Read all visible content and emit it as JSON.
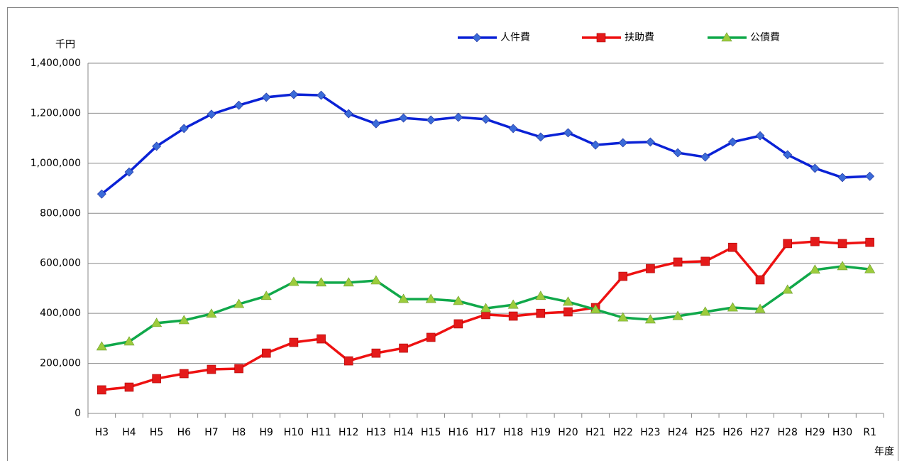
{
  "chart_data": {
    "type": "line",
    "y_unit_label": "千円",
    "x_label": "年度",
    "categories": [
      "H3",
      "H4",
      "H5",
      "H6",
      "H7",
      "H8",
      "H9",
      "H10",
      "H11",
      "H12",
      "H13",
      "H14",
      "H15",
      "H16",
      "H17",
      "H18",
      "H19",
      "H20",
      "H21",
      "H22",
      "H23",
      "H24",
      "H25",
      "H26",
      "H27",
      "H28",
      "H29",
      "H30",
      "R1"
    ],
    "series": [
      {
        "name": "人件費",
        "color": "#0a22d6",
        "marker": "diamond",
        "marker_color": "#3b6bd8",
        "values": [
          877000,
          965000,
          1068000,
          1139000,
          1196000,
          1232000,
          1264000,
          1275000,
          1272000,
          1198000,
          1158000,
          1181000,
          1173000,
          1184000,
          1176000,
          1139000,
          1105000,
          1122000,
          1073000,
          1082000,
          1085000,
          1042000,
          1025000,
          1085000,
          1110000,
          1034000,
          980000,
          943000,
          948000
        ]
      },
      {
        "name": "扶助費",
        "color": "#ee1111",
        "marker": "square",
        "marker_color": "#e41a1a",
        "values": [
          94000,
          105000,
          139000,
          159000,
          176000,
          179000,
          241000,
          284000,
          298000,
          210000,
          241000,
          261000,
          304000,
          358000,
          395000,
          389000,
          400000,
          406000,
          423000,
          548000,
          579000,
          605000,
          608000,
          664000,
          534000,
          679000,
          687000,
          679000,
          684000
        ]
      },
      {
        "name": "公債費",
        "color": "#10a84a",
        "marker": "triangle",
        "marker_color": "#9ccc3c",
        "values": [
          267000,
          287000,
          361000,
          372000,
          398000,
          437000,
          469000,
          525000,
          523000,
          523000,
          531000,
          457000,
          457000,
          449000,
          420000,
          434000,
          469000,
          446000,
          415000,
          383000,
          375000,
          389000,
          406000,
          423000,
          417000,
          494000,
          574000,
          588000,
          576000
        ]
      }
    ],
    "ylim": [
      0,
      1400000
    ],
    "yticks": [
      0,
      {
        "value": 200000,
        "label": "200,000"
      },
      {
        "value": 400000,
        "label": "400,000"
      },
      {
        "value": 600000,
        "label": "600,000"
      },
      {
        "value": 800000,
        "label": "800,000"
      },
      {
        "value": 1000000,
        "label": "1,000,000"
      },
      {
        "value": 1200000,
        "label": "1,200,000"
      },
      {
        "value": 1400000,
        "label": "1,400,000"
      }
    ],
    "grid": true,
    "legend": "top-right"
  }
}
